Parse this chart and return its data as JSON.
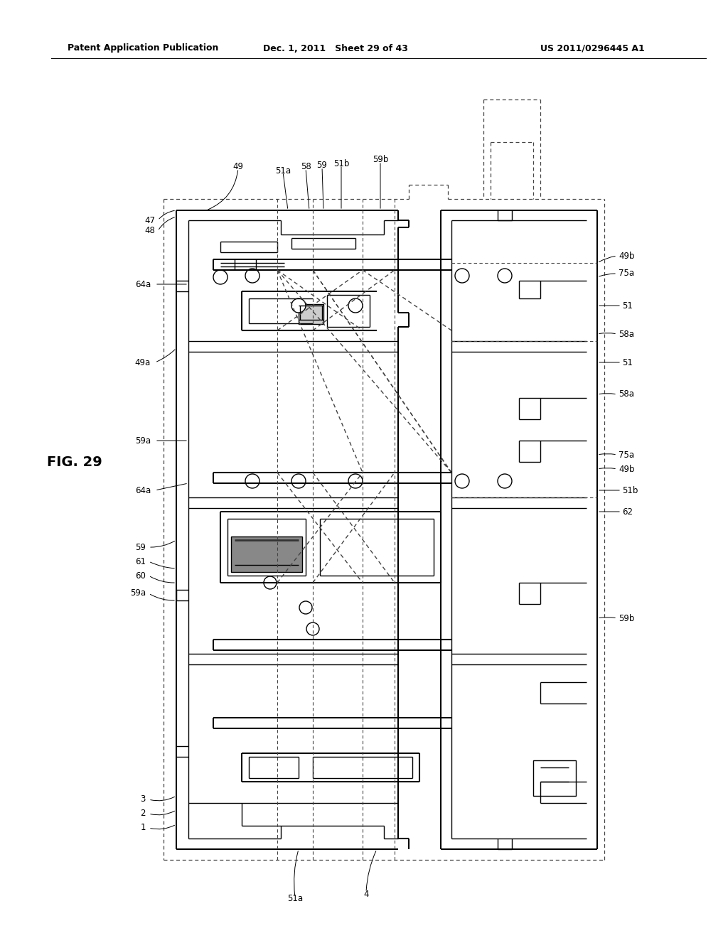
{
  "header_left": "Patent Application Publication",
  "header_mid": "Dec. 1, 2011   Sheet 29 of 43",
  "header_right": "US 2011/0296445 A1",
  "fig_label": "FIG. 29",
  "bg_color": "#ffffff",
  "line_color": "#000000",
  "dashed_color": "#444444",
  "text_color": "#000000"
}
